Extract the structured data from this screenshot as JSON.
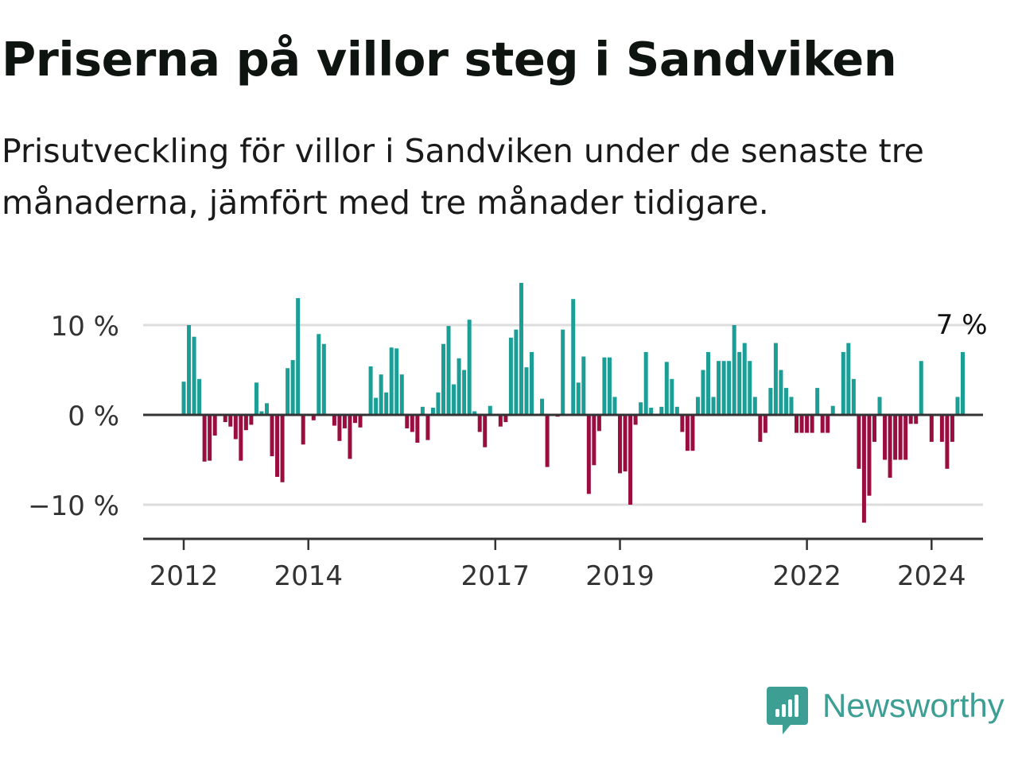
{
  "header": {
    "title": "Priserna på villor steg i Sandviken",
    "subtitle": "Prisutveckling för villor i Sandviken under de senaste tre månaderna, jämfört med tre månader tidigare."
  },
  "brand": {
    "name": "Newsworthy",
    "icon": "newsworthy-chart-icon",
    "color": "#3d9f94"
  },
  "chart_data": {
    "type": "bar",
    "x_start": "2012-01",
    "frequency": "monthly",
    "x_ticks": [
      {
        "label": "2012",
        "date": "2012-01"
      },
      {
        "label": "2014",
        "date": "2014-01"
      },
      {
        "label": "2017",
        "date": "2017-01"
      },
      {
        "label": "2019",
        "date": "2019-01"
      },
      {
        "label": "2022",
        "date": "2022-01"
      },
      {
        "label": "2024",
        "date": "2024-01"
      }
    ],
    "y_ticks": [
      {
        "label": "10 %",
        "value": 10
      },
      {
        "label": "0 %",
        "value": 0
      },
      {
        "label": "−10 %",
        "value": -10
      }
    ],
    "ylim": [
      -14,
      15
    ],
    "grid": true,
    "colors": {
      "positive": "#1a9e95",
      "negative": "#990d3f",
      "grid": "#dddddd",
      "axis": "#333333"
    },
    "values": [
      3.7,
      10,
      8.7,
      4,
      -5.2,
      -5.1,
      -2.3,
      0,
      -0.8,
      -1.3,
      -2.7,
      -5.1,
      -1.7,
      -1.1,
      3.6,
      0.4,
      1.3,
      -4.6,
      -6.9,
      -7.5,
      5.2,
      6.1,
      13,
      -3.3,
      0,
      -0.6,
      9,
      7.9,
      0,
      -1.2,
      -2.9,
      -1.5,
      -4.9,
      -0.9,
      -1.4,
      0,
      5.4,
      1.9,
      4.5,
      2.5,
      7.5,
      7.4,
      4.5,
      -1.5,
      -1.9,
      -3.1,
      0.9,
      -2.8,
      0.8,
      2.5,
      7.9,
      9.9,
      3.4,
      6.3,
      5,
      10.6,
      0.4,
      -1.9,
      -3.6,
      1,
      0,
      -1.3,
      -0.8,
      8.6,
      9.5,
      14.7,
      5.3,
      7,
      0,
      1.8,
      -5.8,
      0,
      -0.2,
      9.5,
      0,
      12.9,
      3.6,
      6.5,
      -8.8,
      -5.6,
      -1.8,
      6.4,
      6.4,
      2,
      -6.5,
      -6.3,
      -10,
      -1.1,
      1.4,
      7,
      0.8,
      0,
      0.9,
      5.9,
      4,
      0.9,
      -1.9,
      -4,
      -4,
      2,
      5,
      7,
      2,
      6,
      6,
      6,
      10,
      7,
      8,
      6,
      2,
      -3,
      -2,
      3,
      8,
      5,
      3,
      2,
      -2,
      -2,
      -2,
      -2,
      3,
      -2,
      -2,
      1,
      0,
      7,
      8,
      4,
      -6,
      -12,
      -9,
      -3,
      2,
      -5,
      -7,
      -5,
      -5,
      -5,
      -1,
      -1,
      6,
      0,
      -3,
      0,
      -3,
      -6,
      -3,
      2,
      7
    ],
    "value_label": {
      "text": "7 %",
      "value": 7
    }
  }
}
